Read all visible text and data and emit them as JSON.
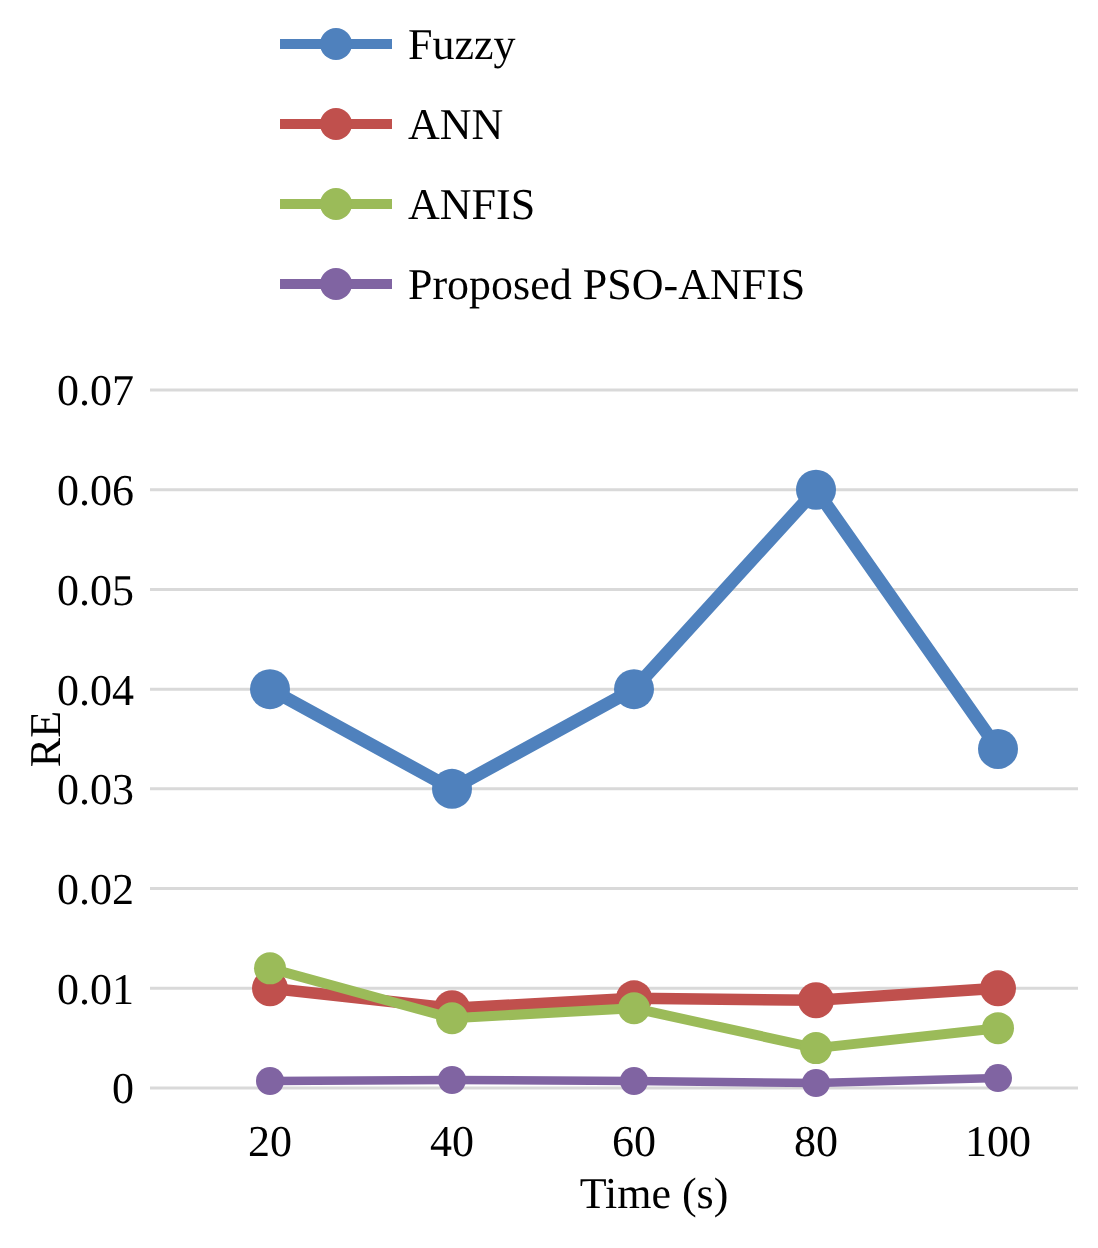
{
  "chart_data": {
    "type": "line",
    "xlabel": "Time (s)",
    "ylabel": "RE",
    "categories": [
      "20",
      "40",
      "60",
      "80",
      "100"
    ],
    "series": [
      {
        "name": "Fuzzy",
        "color": "#4f81bd",
        "values": [
          0.04,
          0.03,
          0.04,
          0.06,
          0.034
        ]
      },
      {
        "name": "ANN",
        "color": "#c0504d",
        "values": [
          0.01,
          0.008,
          0.009,
          0.0088,
          0.01
        ]
      },
      {
        "name": "ANFIS",
        "color": "#9bbb59",
        "values": [
          0.012,
          0.007,
          0.008,
          0.004,
          0.006
        ]
      },
      {
        "name": "Proposed PSO-ANFIS",
        "color": "#8064a2",
        "values": [
          0.0007,
          0.0008,
          0.0007,
          0.0005,
          0.001
        ]
      }
    ],
    "ylim": [
      0,
      0.07
    ],
    "yticks": [
      0,
      {
        "value": 0.01,
        "label": "0.01"
      },
      {
        "value": 0.02,
        "label": "0.02"
      },
      {
        "value": 0.03,
        "label": "0.03"
      },
      {
        "value": 0.04,
        "label": "0.04"
      },
      {
        "value": 0.05,
        "label": "0.05"
      },
      {
        "value": 0.06,
        "label": "0.06"
      },
      {
        "value": 0.07,
        "label": "0.07"
      }
    ],
    "grid": "y",
    "legend": "top",
    "marker": "circle",
    "line_style": "solid"
  }
}
